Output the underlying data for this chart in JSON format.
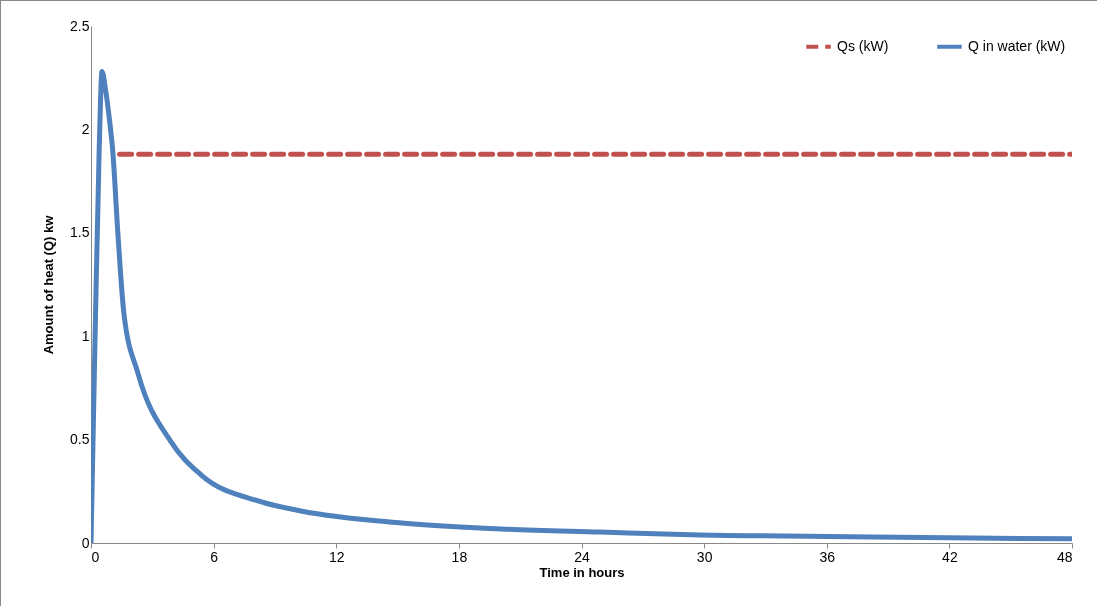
{
  "chart_data": {
    "type": "line",
    "xlabel": "Time in hours",
    "ylabel": "Amount of heat (Q) kw",
    "xlim": [
      0,
      48
    ],
    "xticks": [
      0,
      6,
      12,
      18,
      24,
      30,
      36,
      42,
      48
    ],
    "ylim": [
      0,
      2.5
    ],
    "yticks": [
      0,
      0.5,
      1,
      1.5,
      2,
      2.5
    ],
    "grid": false,
    "legend": "top right",
    "series": [
      {
        "name": "Qs (kW)",
        "color": "#c0504d",
        "line_style": "dashed",
        "x": [
          1.4,
          48
        ],
        "values": [
          1.88,
          1.88
        ]
      },
      {
        "name": "Q in water (kW)",
        "color": "#4f81bd",
        "line_style": "solid",
        "x": [
          0,
          0.2,
          0.4,
          0.54,
          0.7,
          0.9,
          1.06,
          1.32,
          1.61,
          2.3,
          3.91,
          5.38,
          8.3,
          10.27,
          15.2,
          20.06,
          24.9,
          29.8,
          36,
          42,
          48
        ],
        "values": [
          0,
          1.0,
          1.9,
          2.28,
          2.2,
          2.05,
          1.9,
          1.49,
          1.11,
          0.82,
          0.49,
          0.33,
          0.2,
          0.155,
          0.097,
          0.068,
          0.053,
          0.039,
          0.032,
          0.025,
          0.02
        ]
      }
    ]
  }
}
